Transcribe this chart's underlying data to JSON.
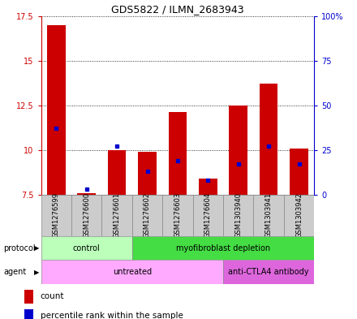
{
  "title": "GDS5822 / ILMN_2683943",
  "samples": [
    "GSM1276599",
    "GSM1276600",
    "GSM1276601",
    "GSM1276602",
    "GSM1276603",
    "GSM1276604",
    "GSM1303940",
    "GSM1303941",
    "GSM1303942"
  ],
  "count_values": [
    17.0,
    7.6,
    10.0,
    9.9,
    12.1,
    8.4,
    12.5,
    13.7,
    10.1
  ],
  "percentile_pct": [
    37,
    3,
    27,
    13,
    19,
    8,
    17,
    27,
    17
  ],
  "ymin": 7.5,
  "ymax": 17.5,
  "yticks": [
    7.5,
    10.0,
    12.5,
    15.0,
    17.5
  ],
  "ytick_labels": [
    "7.5",
    "10",
    "12.5",
    "15",
    "17.5"
  ],
  "right_yticks": [
    0,
    25,
    50,
    75,
    100
  ],
  "right_ytick_labels": [
    "0",
    "25",
    "50",
    "75",
    "100%"
  ],
  "bar_color": "#cc0000",
  "dot_color": "#0000cc",
  "protocol_groups": [
    {
      "label": "control",
      "start": 0,
      "end": 2,
      "color": "#bbffbb"
    },
    {
      "label": "myofibroblast depletion",
      "start": 3,
      "end": 8,
      "color": "#44dd44"
    }
  ],
  "agent_groups": [
    {
      "label": "untreated",
      "start": 0,
      "end": 5,
      "color": "#ffaaff"
    },
    {
      "label": "anti-CTLA4 antibody",
      "start": 6,
      "end": 8,
      "color": "#dd66dd"
    }
  ],
  "legend_count_color": "#cc0000",
  "legend_dot_color": "#0000cc",
  "sample_bg_color": "#cccccc",
  "left_axis_color": "#cc0000",
  "right_axis_color": "#0000cc"
}
